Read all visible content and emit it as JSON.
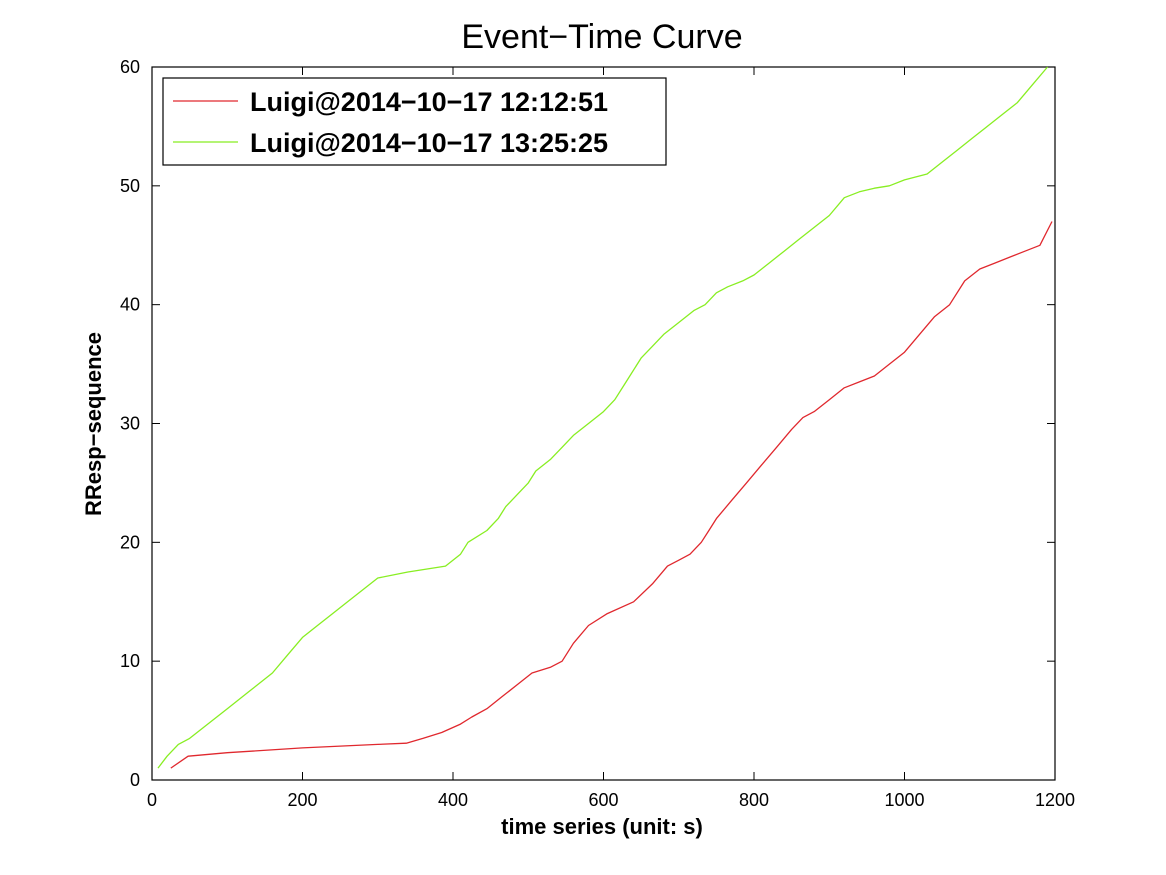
{
  "chart_data": {
    "type": "line",
    "title": "Event−Time Curve",
    "xlabel": "time series (unit: s)",
    "ylabel": "RResp−sequence",
    "xlim": [
      0,
      1200
    ],
    "ylim": [
      0,
      60
    ],
    "xticks": [
      0,
      200,
      400,
      600,
      800,
      1000,
      1200
    ],
    "yticks": [
      0,
      10,
      20,
      30,
      40,
      50,
      60
    ],
    "grid": false,
    "legend_position": "top-left",
    "series": [
      {
        "name": "Luigi@2014−10−17 12:12:51",
        "color": "#e0282e",
        "x": [
          25,
          48,
          100,
          200,
          300,
          338,
          360,
          385,
          410,
          425,
          445,
          465,
          485,
          505,
          530,
          545,
          560,
          580,
          605,
          640,
          665,
          685,
          700,
          715,
          730,
          740,
          750,
          770,
          790,
          810,
          830,
          850,
          865,
          880,
          900,
          920,
          940,
          960,
          980,
          1000,
          1020,
          1040,
          1060,
          1080,
          1100,
          1120,
          1140,
          1160,
          1180,
          1196
        ],
        "y": [
          1,
          2,
          2.3,
          2.7,
          3,
          3.1,
          3.5,
          4,
          4.7,
          5.3,
          6,
          7,
          8,
          9,
          9.5,
          10,
          11.5,
          13,
          14,
          15,
          16.5,
          18,
          18.5,
          19,
          20,
          21,
          22,
          23.5,
          25,
          26.5,
          28,
          29.5,
          30.5,
          31,
          32,
          33,
          33.5,
          34,
          35,
          36,
          37.5,
          39,
          40,
          42,
          43,
          43.5,
          44,
          44.5,
          45,
          47
        ]
      },
      {
        "name": "Luigi@2014−10−17 13:25:25",
        "color": "#88ee22",
        "x": [
          8,
          20,
          35,
          50,
          70,
          100,
          130,
          160,
          180,
          200,
          220,
          240,
          260,
          280,
          300,
          340,
          390,
          410,
          420,
          445,
          460,
          470,
          485,
          500,
          510,
          530,
          545,
          560,
          580,
          600,
          615,
          630,
          650,
          665,
          680,
          700,
          720,
          735,
          750,
          765,
          785,
          800,
          820,
          840,
          860,
          880,
          900,
          920,
          940,
          960,
          980,
          1000,
          1030,
          1050,
          1070,
          1090,
          1110,
          1130,
          1150,
          1170,
          1190
        ],
        "y": [
          1,
          2,
          3,
          3.5,
          4.5,
          6,
          7.5,
          9,
          10.5,
          12,
          13,
          14,
          15,
          16,
          17,
          17.5,
          18,
          19,
          20,
          21,
          22,
          23,
          24,
          25,
          26,
          27,
          28,
          29,
          30,
          31,
          32,
          33.5,
          35.5,
          36.5,
          37.5,
          38.5,
          39.5,
          40,
          41,
          41.5,
          42,
          42.5,
          43.5,
          44.5,
          45.5,
          46.5,
          47.5,
          49,
          49.5,
          49.8,
          50,
          50.5,
          51,
          52,
          53,
          54,
          55,
          56,
          57,
          58.5,
          60
        ]
      }
    ]
  }
}
